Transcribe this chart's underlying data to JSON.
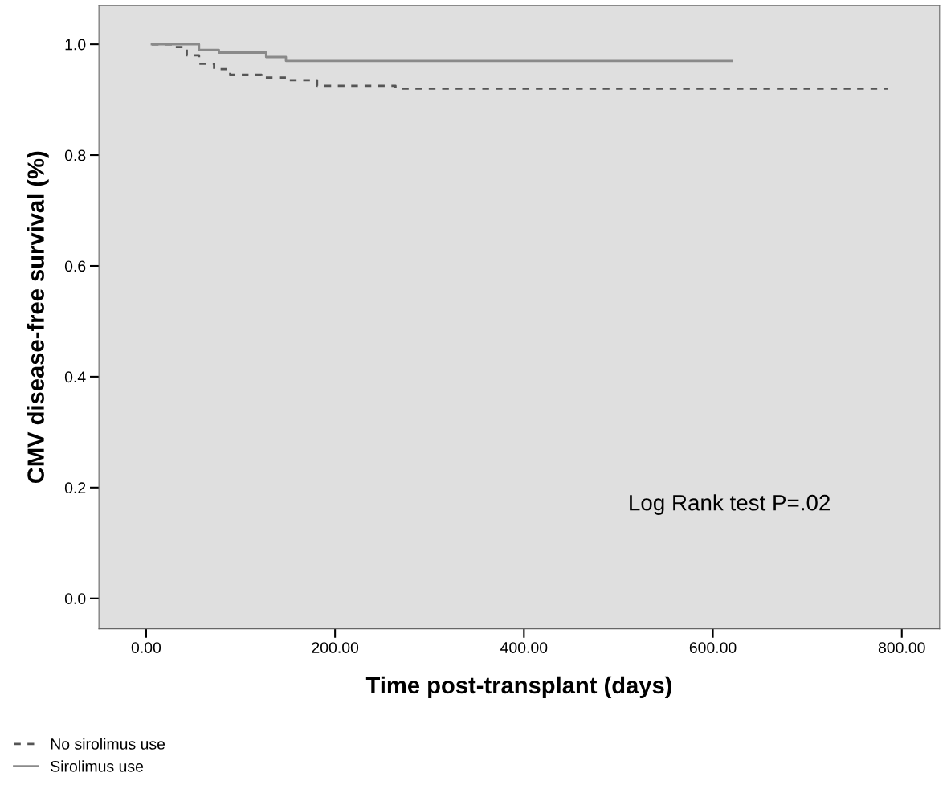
{
  "chart_data": {
    "type": "step",
    "xlabel": "Time post-transplant (days)",
    "ylabel": "CMV disease-free survival (%)",
    "xlim": [
      -50,
      840
    ],
    "ylim": [
      -0.055,
      1.07
    ],
    "xticks": [
      {
        "value": 0,
        "label": "0.00"
      },
      {
        "value": 200,
        "label": "200.00"
      },
      {
        "value": 400,
        "label": "400.00"
      },
      {
        "value": 600,
        "label": "600.00"
      },
      {
        "value": 800,
        "label": "800.00"
      }
    ],
    "yticks": [
      {
        "value": 0,
        "label": "0.0"
      },
      {
        "value": 0.2,
        "label": "0.2"
      },
      {
        "value": 0.4,
        "label": "0.4"
      },
      {
        "value": 0.6,
        "label": "0.6"
      },
      {
        "value": 0.8,
        "label": "0.8"
      },
      {
        "value": 1.0,
        "label": "1.0"
      }
    ],
    "grid": false,
    "legend": "bottom left",
    "annotations": [
      "Log Rank test P=.02"
    ],
    "series": [
      {
        "name": "No sirolimus use",
        "color": "#555555",
        "line_style": "dashed",
        "x": [
          6,
          31,
          43,
          56,
          72,
          89,
          122,
          148,
          181,
          264,
          785
        ],
        "values": [
          1.0,
          0.995,
          0.98,
          0.965,
          0.955,
          0.945,
          0.94,
          0.935,
          0.925,
          0.92,
          0.92
        ]
      },
      {
        "name": "Sirolimus use",
        "color": "#8a8a8a",
        "line_style": "solid",
        "x": [
          6,
          56,
          77,
          127,
          148,
          620
        ],
        "values": [
          1.0,
          0.99,
          0.985,
          0.977,
          0.97,
          0.97
        ]
      }
    ]
  }
}
